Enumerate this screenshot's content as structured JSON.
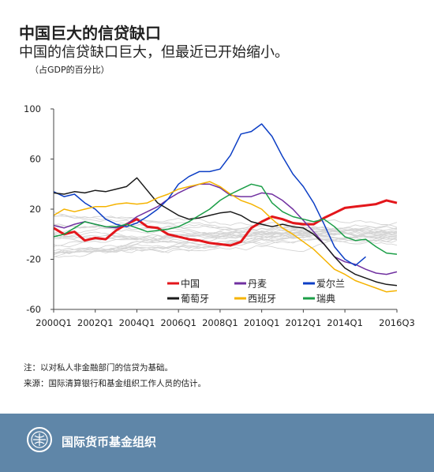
{
  "header": {
    "title": "中国巨大的信贷缺口",
    "subtitle": "中国的信贷缺口巨大，但最近已开始缩小。",
    "unit": "（占GDP的百分比）"
  },
  "notes": {
    "note": "注：以对私人非金融部门的信贷为基础。",
    "source": "来源：国际清算银行和基金组织工作人员的估计。"
  },
  "footer": {
    "org": "国际货币基金组织",
    "bg_color": "#5f86a8",
    "logo": "imf-seal-icon"
  },
  "chart_data": {
    "type": "line",
    "title": "",
    "xlabel": "",
    "ylabel": "",
    "ylim": [
      -60,
      100
    ],
    "yticks": [
      "-60",
      "-20",
      "20",
      "60",
      "100"
    ],
    "xticks": [
      "2000Q1",
      "2002Q1",
      "2004Q1",
      "2006Q1",
      "2008Q1",
      "2010Q1",
      "2012Q1",
      "2014Q1",
      "2016Q3"
    ],
    "xrange": [
      2000.0,
      2016.5
    ],
    "grid": false,
    "legend": "bottom-inside",
    "background_series_color": "#d4d4d4",
    "series": [
      {
        "name": "中国",
        "color": "#e3161b",
        "width": 3,
        "points": [
          [
            2000.0,
            5
          ],
          [
            2000.5,
            0
          ],
          [
            2001.0,
            2
          ],
          [
            2001.5,
            -5
          ],
          [
            2002.0,
            -3
          ],
          [
            2002.5,
            -4
          ],
          [
            2003.0,
            3
          ],
          [
            2003.5,
            8
          ],
          [
            2004.0,
            12
          ],
          [
            2004.5,
            6
          ],
          [
            2005.0,
            5
          ],
          [
            2005.5,
            0
          ],
          [
            2006.0,
            -2
          ],
          [
            2006.5,
            -4
          ],
          [
            2007.0,
            -5
          ],
          [
            2007.5,
            -7
          ],
          [
            2008.0,
            -8
          ],
          [
            2008.5,
            -9
          ],
          [
            2009.0,
            -6
          ],
          [
            2009.5,
            5
          ],
          [
            2010.0,
            10
          ],
          [
            2010.5,
            14
          ],
          [
            2011.0,
            12
          ],
          [
            2011.5,
            9
          ],
          [
            2012.0,
            8
          ],
          [
            2012.5,
            8
          ],
          [
            2013.0,
            13
          ],
          [
            2013.5,
            17
          ],
          [
            2014.0,
            21
          ],
          [
            2014.5,
            22
          ],
          [
            2015.0,
            23
          ],
          [
            2015.5,
            24
          ],
          [
            2016.0,
            27
          ],
          [
            2016.5,
            25
          ]
        ]
      },
      {
        "name": "丹麦",
        "color": "#7030a0",
        "width": 1.5,
        "points": [
          [
            2000.0,
            7
          ],
          [
            2000.5,
            5
          ],
          [
            2001.0,
            8
          ],
          [
            2001.5,
            10
          ],
          [
            2002.0,
            8
          ],
          [
            2002.5,
            6
          ],
          [
            2003.0,
            5
          ],
          [
            2003.5,
            8
          ],
          [
            2004.0,
            14
          ],
          [
            2004.5,
            18
          ],
          [
            2005.0,
            22
          ],
          [
            2005.5,
            28
          ],
          [
            2006.0,
            33
          ],
          [
            2006.5,
            37
          ],
          [
            2007.0,
            40
          ],
          [
            2007.5,
            40
          ],
          [
            2008.0,
            37
          ],
          [
            2008.5,
            31
          ],
          [
            2009.0,
            30
          ],
          [
            2009.5,
            30
          ],
          [
            2010.0,
            33
          ],
          [
            2010.5,
            32
          ],
          [
            2011.0,
            27
          ],
          [
            2011.5,
            20
          ],
          [
            2012.0,
            11
          ],
          [
            2012.5,
            2
          ],
          [
            2013.0,
            -8
          ],
          [
            2013.5,
            -18
          ],
          [
            2014.0,
            -22
          ],
          [
            2014.5,
            -24
          ],
          [
            2015.0,
            -28
          ],
          [
            2015.5,
            -31
          ],
          [
            2016.0,
            -32
          ],
          [
            2016.5,
            -30
          ]
        ]
      },
      {
        "name": "爱尔兰",
        "color": "#0c3ec5",
        "width": 1.5,
        "points": [
          [
            2000.0,
            34
          ],
          [
            2000.5,
            30
          ],
          [
            2001.0,
            32
          ],
          [
            2001.5,
            25
          ],
          [
            2002.0,
            20
          ],
          [
            2002.5,
            12
          ],
          [
            2003.0,
            8
          ],
          [
            2003.5,
            6
          ],
          [
            2004.0,
            9
          ],
          [
            2004.5,
            14
          ],
          [
            2005.0,
            20
          ],
          [
            2005.5,
            28
          ],
          [
            2006.0,
            40
          ],
          [
            2006.5,
            46
          ],
          [
            2007.0,
            50
          ],
          [
            2007.5,
            50
          ],
          [
            2008.0,
            52
          ],
          [
            2008.5,
            63
          ],
          [
            2009.0,
            80
          ],
          [
            2009.5,
            82
          ],
          [
            2010.0,
            88
          ],
          [
            2010.5,
            78
          ],
          [
            2011.0,
            62
          ],
          [
            2011.5,
            48
          ],
          [
            2012.0,
            38
          ],
          [
            2012.5,
            25
          ],
          [
            2013.0,
            8
          ],
          [
            2013.5,
            -10
          ],
          [
            2014.0,
            -20
          ],
          [
            2014.5,
            -25
          ],
          [
            2015.0,
            -18
          ]
        ]
      },
      {
        "name": "葡萄牙",
        "color": "#1a1a1a",
        "width": 1.5,
        "points": [
          [
            2000.0,
            33
          ],
          [
            2000.5,
            32
          ],
          [
            2001.0,
            34
          ],
          [
            2001.5,
            33
          ],
          [
            2002.0,
            35
          ],
          [
            2002.5,
            34
          ],
          [
            2003.0,
            36
          ],
          [
            2003.5,
            38
          ],
          [
            2004.0,
            45
          ],
          [
            2004.5,
            35
          ],
          [
            2005.0,
            25
          ],
          [
            2005.5,
            20
          ],
          [
            2006.0,
            15
          ],
          [
            2006.5,
            12
          ],
          [
            2007.0,
            13
          ],
          [
            2007.5,
            15
          ],
          [
            2008.0,
            17
          ],
          [
            2008.5,
            18
          ],
          [
            2009.0,
            15
          ],
          [
            2009.5,
            10
          ],
          [
            2010.0,
            8
          ],
          [
            2010.5,
            6
          ],
          [
            2011.0,
            8
          ],
          [
            2011.5,
            6
          ],
          [
            2012.0,
            5
          ],
          [
            2012.5,
            0
          ],
          [
            2013.0,
            -8
          ],
          [
            2013.5,
            -18
          ],
          [
            2014.0,
            -27
          ],
          [
            2014.5,
            -32
          ],
          [
            2015.0,
            -35
          ],
          [
            2015.5,
            -38
          ],
          [
            2016.0,
            -40
          ],
          [
            2016.5,
            -41
          ]
        ]
      },
      {
        "name": "西班牙",
        "color": "#f5b300",
        "width": 1.5,
        "points": [
          [
            2000.0,
            15
          ],
          [
            2000.5,
            20
          ],
          [
            2001.0,
            18
          ],
          [
            2001.5,
            20
          ],
          [
            2002.0,
            22
          ],
          [
            2002.5,
            22
          ],
          [
            2003.0,
            24
          ],
          [
            2003.5,
            25
          ],
          [
            2004.0,
            24
          ],
          [
            2004.5,
            25
          ],
          [
            2005.0,
            29
          ],
          [
            2005.5,
            32
          ],
          [
            2006.0,
            36
          ],
          [
            2006.5,
            38
          ],
          [
            2007.0,
            40
          ],
          [
            2007.5,
            42
          ],
          [
            2008.0,
            38
          ],
          [
            2008.5,
            32
          ],
          [
            2009.0,
            27
          ],
          [
            2009.5,
            24
          ],
          [
            2010.0,
            20
          ],
          [
            2010.5,
            12
          ],
          [
            2011.0,
            5
          ],
          [
            2011.5,
            0
          ],
          [
            2012.0,
            -6
          ],
          [
            2012.5,
            -12
          ],
          [
            2013.0,
            -20
          ],
          [
            2013.5,
            -28
          ],
          [
            2014.0,
            -32
          ],
          [
            2014.5,
            -37
          ],
          [
            2015.0,
            -40
          ],
          [
            2015.5,
            -43
          ],
          [
            2016.0,
            -46
          ],
          [
            2016.5,
            -45
          ]
        ]
      },
      {
        "name": "瑞典",
        "color": "#1b9e47",
        "width": 1.5,
        "points": [
          [
            2000.0,
            -2
          ],
          [
            2000.5,
            0
          ],
          [
            2001.0,
            5
          ],
          [
            2001.5,
            10
          ],
          [
            2002.0,
            8
          ],
          [
            2002.5,
            6
          ],
          [
            2003.0,
            6
          ],
          [
            2003.5,
            8
          ],
          [
            2004.0,
            5
          ],
          [
            2004.5,
            2
          ],
          [
            2005.0,
            3
          ],
          [
            2005.5,
            4
          ],
          [
            2006.0,
            6
          ],
          [
            2006.5,
            10
          ],
          [
            2007.0,
            15
          ],
          [
            2007.5,
            20
          ],
          [
            2008.0,
            27
          ],
          [
            2008.5,
            32
          ],
          [
            2009.0,
            36
          ],
          [
            2009.5,
            40
          ],
          [
            2010.0,
            38
          ],
          [
            2010.5,
            25
          ],
          [
            2011.0,
            18
          ],
          [
            2011.5,
            14
          ],
          [
            2012.0,
            12
          ],
          [
            2012.5,
            10
          ],
          [
            2013.0,
            12
          ],
          [
            2013.5,
            6
          ],
          [
            2014.0,
            -2
          ],
          [
            2014.5,
            -5
          ],
          [
            2015.0,
            -4
          ],
          [
            2015.5,
            -10
          ],
          [
            2016.0,
            -15
          ],
          [
            2016.5,
            -16
          ]
        ]
      }
    ]
  }
}
